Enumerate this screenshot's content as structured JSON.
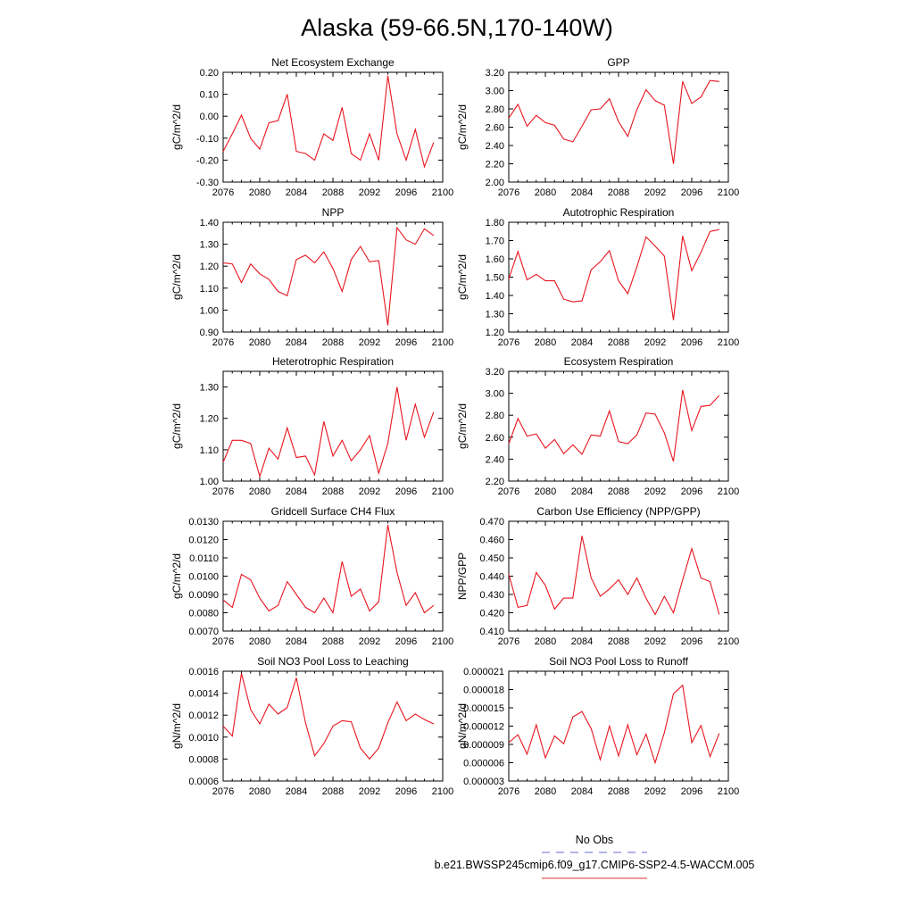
{
  "title": "Alaska (59-66.5N,170-140W)",
  "legend": {
    "items": [
      {
        "label": "No Obs",
        "color": "#6a6ad8",
        "dash": true
      },
      {
        "label": "b.e21.BWSSP245cmip6.f09_g17.CMIP6-SSP2-4.5-WACCM.005",
        "color": "#e03030",
        "dash": false
      }
    ]
  },
  "chart_data": [
    {
      "type": "line",
      "title": "Net Ecosystem Exchange",
      "ylabel": "gC/m^2/d",
      "xlim": [
        2076,
        2100
      ],
      "xticks": [
        "2076",
        "2080",
        "2084",
        "2088",
        "2092",
        "2096",
        "2100"
      ],
      "ylim": [
        -0.3,
        0.2
      ],
      "yticks": [
        "0.20",
        "0.10",
        "0.00",
        "-0.10",
        "-0.20",
        "-0.30"
      ],
      "x": [
        2076,
        2077,
        2078,
        2079,
        2080,
        2081,
        2082,
        2083,
        2084,
        2085,
        2086,
        2087,
        2088,
        2089,
        2090,
        2091,
        2092,
        2093,
        2094,
        2095,
        2096,
        2097,
        2098,
        2099
      ],
      "series": [
        {
          "color": "#e8151f",
          "values": [
            -0.16,
            -0.08,
            0.005,
            -0.1,
            -0.15,
            -0.03,
            -0.02,
            0.1,
            -0.16,
            -0.17,
            -0.2,
            -0.08,
            -0.11,
            0.04,
            -0.17,
            -0.2,
            -0.08,
            -0.2,
            0.185,
            -0.08,
            -0.2,
            -0.06,
            -0.23,
            -0.12
          ]
        }
      ]
    },
    {
      "type": "line",
      "title": "GPP",
      "ylabel": "gC/m^2/d",
      "xlim": [
        2076,
        2100
      ],
      "xticks": [
        "2076",
        "2080",
        "2084",
        "2088",
        "2092",
        "2096",
        "2100"
      ],
      "ylim": [
        2.0,
        3.2
      ],
      "yticks": [
        "3.20",
        "3.00",
        "2.80",
        "2.60",
        "2.40",
        "2.20",
        "2.00"
      ],
      "x": [
        2076,
        2077,
        2078,
        2079,
        2080,
        2081,
        2082,
        2083,
        2084,
        2085,
        2086,
        2087,
        2088,
        2089,
        2090,
        2091,
        2092,
        2093,
        2094,
        2095,
        2096,
        2097,
        2098,
        2099
      ],
      "series": [
        {
          "color": "#e8151f",
          "values": [
            2.7,
            2.85,
            2.61,
            2.73,
            2.65,
            2.62,
            2.47,
            2.44,
            2.61,
            2.79,
            2.8,
            2.91,
            2.66,
            2.5,
            2.79,
            3.01,
            2.89,
            2.84,
            2.2,
            3.1,
            2.86,
            2.93,
            3.11,
            3.1
          ]
        }
      ]
    },
    {
      "type": "line",
      "title": "NPP",
      "ylabel": "gC/m^2/d",
      "xlim": [
        2076,
        2100
      ],
      "xticks": [
        "2076",
        "2080",
        "2084",
        "2088",
        "2092",
        "2096",
        "2100"
      ],
      "ylim": [
        0.9,
        1.4
      ],
      "yticks": [
        "1.40",
        "1.30",
        "1.20",
        "1.10",
        "1.00",
        "0.90"
      ],
      "x": [
        2076,
        2077,
        2078,
        2079,
        2080,
        2081,
        2082,
        2083,
        2084,
        2085,
        2086,
        2087,
        2088,
        2089,
        2090,
        2091,
        2092,
        2093,
        2094,
        2095,
        2096,
        2097,
        2098,
        2099
      ],
      "series": [
        {
          "color": "#e8151f",
          "values": [
            1.215,
            1.21,
            1.125,
            1.21,
            1.165,
            1.14,
            1.085,
            1.065,
            1.23,
            1.25,
            1.215,
            1.265,
            1.19,
            1.085,
            1.23,
            1.29,
            1.22,
            1.225,
            0.93,
            1.375,
            1.32,
            1.3,
            1.37,
            1.34
          ]
        }
      ]
    },
    {
      "type": "line",
      "title": "Autotrophic Respiration",
      "ylabel": "gC/m^2/d",
      "xlim": [
        2076,
        2100
      ],
      "xticks": [
        "2076",
        "2080",
        "2084",
        "2088",
        "2092",
        "2096",
        "2100"
      ],
      "ylim": [
        1.2,
        1.8
      ],
      "yticks": [
        "1.80",
        "1.70",
        "1.60",
        "1.50",
        "1.40",
        "1.30",
        "1.20"
      ],
      "x": [
        2076,
        2077,
        2078,
        2079,
        2080,
        2081,
        2082,
        2083,
        2084,
        2085,
        2086,
        2087,
        2088,
        2089,
        2090,
        2091,
        2092,
        2093,
        2094,
        2095,
        2096,
        2097,
        2098,
        2099
      ],
      "series": [
        {
          "color": "#e8151f",
          "values": [
            1.49,
            1.64,
            1.485,
            1.515,
            1.48,
            1.48,
            1.38,
            1.365,
            1.37,
            1.54,
            1.585,
            1.645,
            1.48,
            1.41,
            1.555,
            1.72,
            1.67,
            1.615,
            1.265,
            1.725,
            1.535,
            1.635,
            1.75,
            1.76
          ]
        }
      ]
    },
    {
      "type": "line",
      "title": "Heterotrophic Respiration",
      "ylabel": "gC/m^2/d",
      "xlim": [
        2076,
        2100
      ],
      "xticks": [
        "2076",
        "2080",
        "2084",
        "2088",
        "2092",
        "2096",
        "2100"
      ],
      "ylim": [
        1.0,
        1.35
      ],
      "yticks": [
        "1.30",
        "1.20",
        "1.10",
        "1.00"
      ],
      "x": [
        2076,
        2077,
        2078,
        2079,
        2080,
        2081,
        2082,
        2083,
        2084,
        2085,
        2086,
        2087,
        2088,
        2089,
        2090,
        2091,
        2092,
        2093,
        2094,
        2095,
        2096,
        2097,
        2098,
        2099
      ],
      "series": [
        {
          "color": "#e8151f",
          "values": [
            1.06,
            1.13,
            1.13,
            1.12,
            1.015,
            1.105,
            1.07,
            1.17,
            1.075,
            1.08,
            1.02,
            1.19,
            1.08,
            1.13,
            1.065,
            1.1,
            1.145,
            1.025,
            1.12,
            1.3,
            1.13,
            1.245,
            1.14,
            1.22
          ]
        }
      ]
    },
    {
      "type": "line",
      "title": "Ecosystem Respiration",
      "ylabel": "gC/m^2/d",
      "xlim": [
        2076,
        2100
      ],
      "xticks": [
        "2076",
        "2080",
        "2084",
        "2088",
        "2092",
        "2096",
        "2100"
      ],
      "ylim": [
        2.2,
        3.2
      ],
      "yticks": [
        "3.20",
        "3.00",
        "2.80",
        "2.60",
        "2.40",
        "2.20"
      ],
      "x": [
        2076,
        2077,
        2078,
        2079,
        2080,
        2081,
        2082,
        2083,
        2084,
        2085,
        2086,
        2087,
        2088,
        2089,
        2090,
        2091,
        2092,
        2093,
        2094,
        2095,
        2096,
        2097,
        2098,
        2099
      ],
      "series": [
        {
          "color": "#e8151f",
          "values": [
            2.54,
            2.77,
            2.61,
            2.63,
            2.5,
            2.58,
            2.45,
            2.53,
            2.445,
            2.62,
            2.61,
            2.84,
            2.56,
            2.54,
            2.62,
            2.82,
            2.81,
            2.64,
            2.38,
            3.03,
            2.66,
            2.88,
            2.89,
            2.98
          ]
        }
      ]
    },
    {
      "type": "line",
      "title": "Gridcell Surface CH4 Flux",
      "ylabel": "gC/m^2/d",
      "xlim": [
        2076,
        2100
      ],
      "xticks": [
        "2076",
        "2080",
        "2084",
        "2088",
        "2092",
        "2096",
        "2100"
      ],
      "ylim": [
        0.007,
        0.013
      ],
      "yticks": [
        "0.0130",
        "0.0120",
        "0.0110",
        "0.0100",
        "0.0090",
        "0.0080",
        "0.0070"
      ],
      "x": [
        2076,
        2077,
        2078,
        2079,
        2080,
        2081,
        2082,
        2083,
        2084,
        2085,
        2086,
        2087,
        2088,
        2089,
        2090,
        2091,
        2092,
        2093,
        2094,
        2095,
        2096,
        2097,
        2098,
        2099
      ],
      "series": [
        {
          "color": "#e8151f",
          "values": [
            0.0087,
            0.0083,
            0.0101,
            0.0098,
            0.0088,
            0.0081,
            0.0084,
            0.0097,
            0.009,
            0.0083,
            0.008,
            0.0088,
            0.008,
            0.0108,
            0.0089,
            0.0093,
            0.0081,
            0.0086,
            0.0128,
            0.0102,
            0.0084,
            0.0091,
            0.008,
            0.0084
          ]
        }
      ]
    },
    {
      "type": "line",
      "title": "Carbon Use Efficiency (NPP/GPP)",
      "ylabel": "NPP/GPP",
      "xlim": [
        2076,
        2100
      ],
      "xticks": [
        "2076",
        "2080",
        "2084",
        "2088",
        "2092",
        "2096",
        "2100"
      ],
      "ylim": [
        0.41,
        0.47
      ],
      "yticks": [
        "0.470",
        "0.460",
        "0.450",
        "0.440",
        "0.430",
        "0.420",
        "0.410"
      ],
      "x": [
        2076,
        2077,
        2078,
        2079,
        2080,
        2081,
        2082,
        2083,
        2084,
        2085,
        2086,
        2087,
        2088,
        2089,
        2090,
        2091,
        2092,
        2093,
        2094,
        2095,
        2096,
        2097,
        2098,
        2099
      ],
      "series": [
        {
          "color": "#e8151f",
          "values": [
            0.441,
            0.423,
            0.424,
            0.442,
            0.435,
            0.422,
            0.428,
            0.428,
            0.462,
            0.439,
            0.429,
            0.433,
            0.438,
            0.43,
            0.439,
            0.428,
            0.419,
            0.429,
            0.42,
            0.438,
            0.455,
            0.439,
            0.437,
            0.419
          ]
        }
      ]
    },
    {
      "type": "line",
      "title": "Soil NO3 Pool Loss to Leaching",
      "ylabel": "gN/m^2/d",
      "xlim": [
        2076,
        2100
      ],
      "xticks": [
        "2076",
        "2080",
        "2084",
        "2088",
        "2092",
        "2096",
        "2100"
      ],
      "ylim": [
        0.0006,
        0.0016
      ],
      "yticks": [
        "0.0016",
        "0.0014",
        "0.0012",
        "0.0010",
        "0.0008",
        "0.0006"
      ],
      "x": [
        2076,
        2077,
        2078,
        2079,
        2080,
        2081,
        2082,
        2083,
        2084,
        2085,
        2086,
        2087,
        2088,
        2089,
        2090,
        2091,
        2092,
        2093,
        2094,
        2095,
        2096,
        2097,
        2098,
        2099
      ],
      "series": [
        {
          "color": "#e8151f",
          "values": [
            0.0011,
            0.00101,
            0.00158,
            0.00125,
            0.00112,
            0.0013,
            0.00121,
            0.00127,
            0.00154,
            0.00113,
            0.00083,
            0.00094,
            0.0011,
            0.00115,
            0.00114,
            0.0009,
            0.0008,
            0.0009,
            0.00113,
            0.00132,
            0.00115,
            0.00121,
            0.00116,
            0.00112
          ]
        }
      ]
    },
    {
      "type": "line",
      "title": "Soil NO3 Pool Loss to Runoff",
      "ylabel": "gN/m^2/d",
      "xlim": [
        2076,
        2100
      ],
      "xticks": [
        "2076",
        "2080",
        "2084",
        "2088",
        "2092",
        "2096",
        "2100"
      ],
      "ylim": [
        3e-06,
        2.1e-05
      ],
      "yticks": [
        "0.000021",
        "0.000018",
        "0.000015",
        "0.000012",
        "0.000009",
        "0.000006",
        "0.000003"
      ],
      "x": [
        2076,
        2077,
        2078,
        2079,
        2080,
        2081,
        2082,
        2083,
        2084,
        2085,
        2086,
        2087,
        2088,
        2089,
        2090,
        2091,
        2092,
        2093,
        2094,
        2095,
        2096,
        2097,
        2098,
        2099
      ],
      "series": [
        {
          "color": "#e8151f",
          "values": [
            9.3e-06,
            1.06e-05,
            7.4e-06,
            1.22e-05,
            6.8e-06,
            1.04e-05,
            9.1e-06,
            1.35e-05,
            1.44e-05,
            1.16e-05,
            6.5e-06,
            1.2e-05,
            7.1e-06,
            1.22e-05,
            7.3e-06,
            1.07e-05,
            6e-06,
            1.09e-05,
            1.73e-05,
            1.87e-05,
            9.3e-06,
            1.21e-05,
            7e-06,
            1.08e-05
          ]
        }
      ]
    }
  ]
}
